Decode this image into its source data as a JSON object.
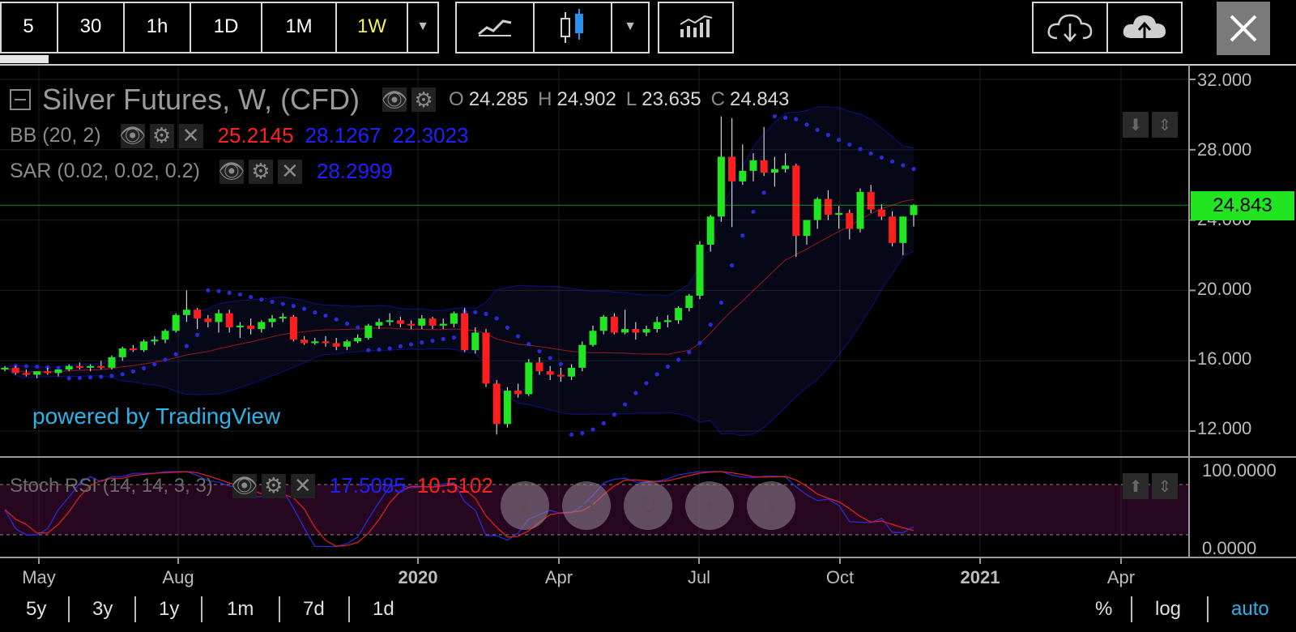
{
  "toolbar": {
    "intervals": [
      "5",
      "30",
      "1h",
      "1D",
      "1M",
      "1W"
    ],
    "active_interval": "1W"
  },
  "legend": {
    "title": "Silver Futures, W, (CFD)",
    "ohlc": {
      "o_label": "O",
      "o": "24.285",
      "h_label": "H",
      "h": "24.902",
      "l_label": "L",
      "l": "23.635",
      "c_label": "C",
      "c": "24.843"
    },
    "bb": {
      "label": "BB (20, 2)",
      "basis": "25.2145",
      "upper": "28.1267",
      "lower": "22.3023"
    },
    "sar": {
      "label": "SAR (0.02, 0.02, 0.2)",
      "value": "28.2999"
    },
    "stoch": {
      "label": "Stoch RSI (14, 14, 3, 3)",
      "k": "17.5085",
      "d": "10.5102"
    }
  },
  "price_label": "24.843",
  "powered_by": "powered by TradingView",
  "y_ticks": [
    "32.000",
    "28.000",
    "24.000",
    "20.000",
    "16.000",
    "12.000"
  ],
  "stoch_ticks": [
    "100.0000",
    "0.0000"
  ],
  "x_ticks": [
    "May",
    "Aug",
    "2020",
    "Apr",
    "Jul",
    "Oct",
    "2021",
    "Apr"
  ],
  "ranges": [
    "5y",
    "3y",
    "1y",
    "1m",
    "7d",
    "1d"
  ],
  "scale_options": {
    "percent": "%",
    "log": "log",
    "auto": "auto"
  },
  "colors": {
    "up": "#21e521",
    "down": "#ff1e1e",
    "bb_basis": "#ff2020",
    "bb_band": "#1a1aff",
    "price_label_bg": "#21e521",
    "accent_active": "#f5f252",
    "link": "#2bb4e8"
  },
  "chart_data": {
    "type": "candlestick",
    "title": "Silver Futures, W, (CFD)",
    "ylim": [
      11,
      32.6
    ],
    "y_ticks": [
      32,
      28,
      24,
      20,
      16,
      12
    ],
    "last_price": 24.843,
    "ohlc": [
      {
        "o": 15.5,
        "h": 15.7,
        "l": 15.4,
        "c": 15.6
      },
      {
        "o": 15.6,
        "h": 15.7,
        "l": 15.2,
        "c": 15.3
      },
      {
        "o": 15.3,
        "h": 15.5,
        "l": 15.1,
        "c": 15.2
      },
      {
        "o": 15.2,
        "h": 15.4,
        "l": 15.0,
        "c": 15.4
      },
      {
        "o": 15.4,
        "h": 15.6,
        "l": 15.2,
        "c": 15.3
      },
      {
        "o": 15.3,
        "h": 15.5,
        "l": 15.1,
        "c": 15.5
      },
      {
        "o": 15.5,
        "h": 15.8,
        "l": 15.4,
        "c": 15.7
      },
      {
        "o": 15.7,
        "h": 15.9,
        "l": 15.5,
        "c": 15.6
      },
      {
        "o": 15.6,
        "h": 15.8,
        "l": 15.4,
        "c": 15.7
      },
      {
        "o": 15.7,
        "h": 16.0,
        "l": 15.5,
        "c": 15.6
      },
      {
        "o": 15.6,
        "h": 16.3,
        "l": 15.5,
        "c": 16.2
      },
      {
        "o": 16.2,
        "h": 16.8,
        "l": 16.0,
        "c": 16.7
      },
      {
        "o": 16.7,
        "h": 16.9,
        "l": 16.5,
        "c": 16.6
      },
      {
        "o": 16.6,
        "h": 17.2,
        "l": 16.5,
        "c": 17.1
      },
      {
        "o": 17.1,
        "h": 17.4,
        "l": 16.9,
        "c": 17.2
      },
      {
        "o": 17.2,
        "h": 17.8,
        "l": 17.0,
        "c": 17.7
      },
      {
        "o": 17.7,
        "h": 18.7,
        "l": 17.6,
        "c": 18.6
      },
      {
        "o": 18.6,
        "h": 20.0,
        "l": 18.2,
        "c": 18.9
      },
      {
        "o": 18.9,
        "h": 19.0,
        "l": 17.8,
        "c": 18.4
      },
      {
        "o": 18.4,
        "h": 18.6,
        "l": 17.9,
        "c": 18.2
      },
      {
        "o": 18.2,
        "h": 18.9,
        "l": 17.6,
        "c": 18.7
      },
      {
        "o": 18.7,
        "h": 18.9,
        "l": 17.6,
        "c": 17.9
      },
      {
        "o": 17.9,
        "h": 18.2,
        "l": 17.3,
        "c": 18.0
      },
      {
        "o": 18.0,
        "h": 18.4,
        "l": 17.5,
        "c": 17.8
      },
      {
        "o": 17.8,
        "h": 18.3,
        "l": 17.6,
        "c": 18.2
      },
      {
        "o": 18.2,
        "h": 18.6,
        "l": 17.9,
        "c": 18.4
      },
      {
        "o": 18.4,
        "h": 18.7,
        "l": 18.2,
        "c": 18.5
      },
      {
        "o": 18.5,
        "h": 18.6,
        "l": 17.1,
        "c": 17.2
      },
      {
        "o": 17.2,
        "h": 17.4,
        "l": 16.9,
        "c": 17.0
      },
      {
        "o": 17.0,
        "h": 17.3,
        "l": 16.9,
        "c": 17.1
      },
      {
        "o": 17.1,
        "h": 17.4,
        "l": 16.8,
        "c": 17.0
      },
      {
        "o": 17.0,
        "h": 17.3,
        "l": 16.6,
        "c": 16.8
      },
      {
        "o": 16.8,
        "h": 17.2,
        "l": 16.6,
        "c": 17.1
      },
      {
        "o": 17.1,
        "h": 17.5,
        "l": 17.0,
        "c": 17.3
      },
      {
        "o": 17.3,
        "h": 18.1,
        "l": 17.2,
        "c": 18.0
      },
      {
        "o": 18.0,
        "h": 18.4,
        "l": 17.8,
        "c": 18.2
      },
      {
        "o": 18.2,
        "h": 18.7,
        "l": 18.0,
        "c": 18.3
      },
      {
        "o": 18.3,
        "h": 18.5,
        "l": 17.9,
        "c": 18.1
      },
      {
        "o": 18.1,
        "h": 18.3,
        "l": 17.8,
        "c": 18.0
      },
      {
        "o": 18.0,
        "h": 18.6,
        "l": 17.8,
        "c": 18.4
      },
      {
        "o": 18.4,
        "h": 18.5,
        "l": 17.8,
        "c": 18.0
      },
      {
        "o": 18.0,
        "h": 18.4,
        "l": 17.8,
        "c": 18.1
      },
      {
        "o": 18.1,
        "h": 18.8,
        "l": 17.9,
        "c": 18.7
      },
      {
        "o": 18.7,
        "h": 19.0,
        "l": 16.5,
        "c": 16.6
      },
      {
        "o": 16.6,
        "h": 17.9,
        "l": 16.4,
        "c": 17.6
      },
      {
        "o": 17.6,
        "h": 17.8,
        "l": 14.5,
        "c": 14.7
      },
      {
        "o": 14.7,
        "h": 14.9,
        "l": 11.8,
        "c": 12.4
      },
      {
        "o": 12.4,
        "h": 14.5,
        "l": 12.2,
        "c": 14.3
      },
      {
        "o": 14.3,
        "h": 14.7,
        "l": 13.9,
        "c": 14.1
      },
      {
        "o": 14.1,
        "h": 16.1,
        "l": 14.0,
        "c": 15.9
      },
      {
        "o": 15.9,
        "h": 16.2,
        "l": 15.2,
        "c": 15.4
      },
      {
        "o": 15.4,
        "h": 15.7,
        "l": 14.9,
        "c": 15.2
      },
      {
        "o": 15.2,
        "h": 15.6,
        "l": 14.8,
        "c": 15.1
      },
      {
        "o": 15.1,
        "h": 15.8,
        "l": 14.9,
        "c": 15.6
      },
      {
        "o": 15.6,
        "h": 17.1,
        "l": 15.4,
        "c": 16.9
      },
      {
        "o": 16.9,
        "h": 18.0,
        "l": 16.8,
        "c": 17.7
      },
      {
        "o": 17.7,
        "h": 18.6,
        "l": 17.5,
        "c": 18.5
      },
      {
        "o": 18.5,
        "h": 18.7,
        "l": 17.5,
        "c": 17.6
      },
      {
        "o": 17.6,
        "h": 18.9,
        "l": 17.5,
        "c": 17.8
      },
      {
        "o": 17.8,
        "h": 18.2,
        "l": 17.2,
        "c": 17.6
      },
      {
        "o": 17.6,
        "h": 18.0,
        "l": 17.4,
        "c": 17.8
      },
      {
        "o": 17.8,
        "h": 18.5,
        "l": 17.6,
        "c": 18.2
      },
      {
        "o": 18.2,
        "h": 18.6,
        "l": 17.9,
        "c": 18.3
      },
      {
        "o": 18.3,
        "h": 19.1,
        "l": 18.1,
        "c": 19.0
      },
      {
        "o": 19.0,
        "h": 19.8,
        "l": 18.8,
        "c": 19.7
      },
      {
        "o": 19.7,
        "h": 22.8,
        "l": 19.5,
        "c": 22.6
      },
      {
        "o": 22.6,
        "h": 24.3,
        "l": 22.2,
        "c": 24.2
      },
      {
        "o": 24.2,
        "h": 29.9,
        "l": 23.9,
        "c": 27.6
      },
      {
        "o": 27.6,
        "h": 29.8,
        "l": 23.6,
        "c": 26.2
      },
      {
        "o": 26.2,
        "h": 28.3,
        "l": 26.0,
        "c": 26.8
      },
      {
        "o": 26.8,
        "h": 27.8,
        "l": 26.2,
        "c": 27.4
      },
      {
        "o": 27.4,
        "h": 29.3,
        "l": 26.5,
        "c": 26.7
      },
      {
        "o": 26.7,
        "h": 27.6,
        "l": 25.9,
        "c": 26.9
      },
      {
        "o": 26.9,
        "h": 27.8,
        "l": 26.7,
        "c": 27.1
      },
      {
        "o": 27.1,
        "h": 27.2,
        "l": 21.9,
        "c": 23.1
      },
      {
        "o": 23.1,
        "h": 24.0,
        "l": 22.6,
        "c": 24.0
      },
      {
        "o": 24.0,
        "h": 25.3,
        "l": 23.5,
        "c": 25.2
      },
      {
        "o": 25.2,
        "h": 25.7,
        "l": 24.0,
        "c": 24.3
      },
      {
        "o": 24.3,
        "h": 24.8,
        "l": 23.5,
        "c": 24.4
      },
      {
        "o": 24.4,
        "h": 24.6,
        "l": 22.9,
        "c": 23.5
      },
      {
        "o": 23.5,
        "h": 25.8,
        "l": 23.3,
        "c": 25.6
      },
      {
        "o": 25.6,
        "h": 26.0,
        "l": 24.4,
        "c": 24.6
      },
      {
        "o": 24.6,
        "h": 24.9,
        "l": 24.0,
        "c": 24.2
      },
      {
        "o": 24.2,
        "h": 24.5,
        "l": 22.5,
        "c": 22.7
      },
      {
        "o": 22.7,
        "h": 24.2,
        "l": 22.0,
        "c": 24.2
      },
      {
        "o": 24.285,
        "h": 24.902,
        "l": 23.635,
        "c": 24.843
      }
    ]
  }
}
